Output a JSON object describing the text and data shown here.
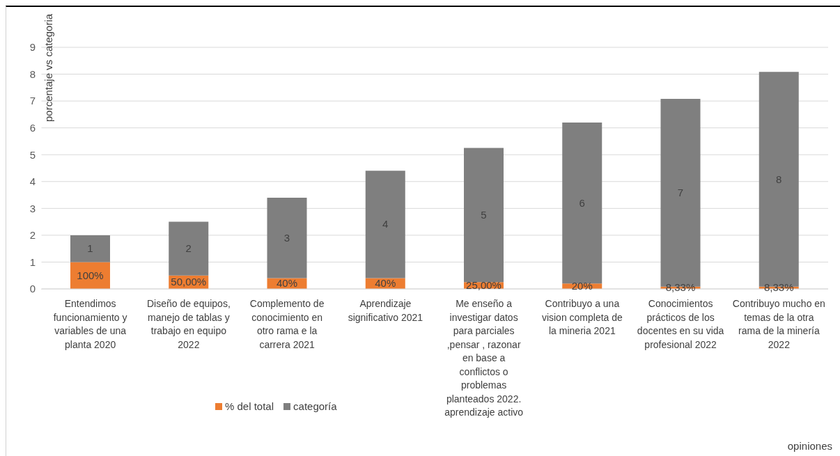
{
  "chart_data": {
    "type": "bar",
    "stacked": true,
    "annotations": [
      "opiniones"
    ],
    "ylabel": "porcentaje vs categoria",
    "categories": [
      "Entendimos funcionamiento y variables de una planta 2020",
      "Diseño de equipos, manejo de tablas y trabajo en equipo 2022",
      "Complemento de conocimiento en otro rama e la carrera 2021",
      "Aprendizaje significativo 2021",
      "Me enseño a investigar datos para parciales ,pensar , razonar en base a conflictos o problemas planteados 2022. aprendizaje activo",
      "Contribuyo a una vision completa de la mineria 2021",
      "Conocimientos prácticos de los docentes en su vida profesional 2022",
      "Contribuyo mucho en temas de la otra rama de la minería 2022"
    ],
    "series": [
      {
        "name": "% del total",
        "color": "#ed7d31",
        "values": [
          1,
          0.5,
          0.4,
          0.4,
          0.25,
          0.2,
          0.0833,
          0.0833
        ],
        "value_labels": [
          "100%",
          "50,00%",
          "40%",
          "40%",
          "25,00%",
          "20%",
          "8,33%",
          "8,33%"
        ]
      },
      {
        "name": "categoría",
        "color": "#7f7f7f",
        "values": [
          1,
          2,
          3,
          4,
          5,
          6,
          7,
          8
        ],
        "value_labels": [
          "1",
          "2",
          "3",
          "4",
          "5",
          "6",
          "7",
          "8"
        ]
      }
    ],
    "ylim": [
      0,
      9
    ],
    "yticks": [
      0,
      1,
      2,
      3,
      4,
      5,
      6,
      7,
      8,
      9
    ],
    "grid": "y",
    "legend": "bottom"
  }
}
